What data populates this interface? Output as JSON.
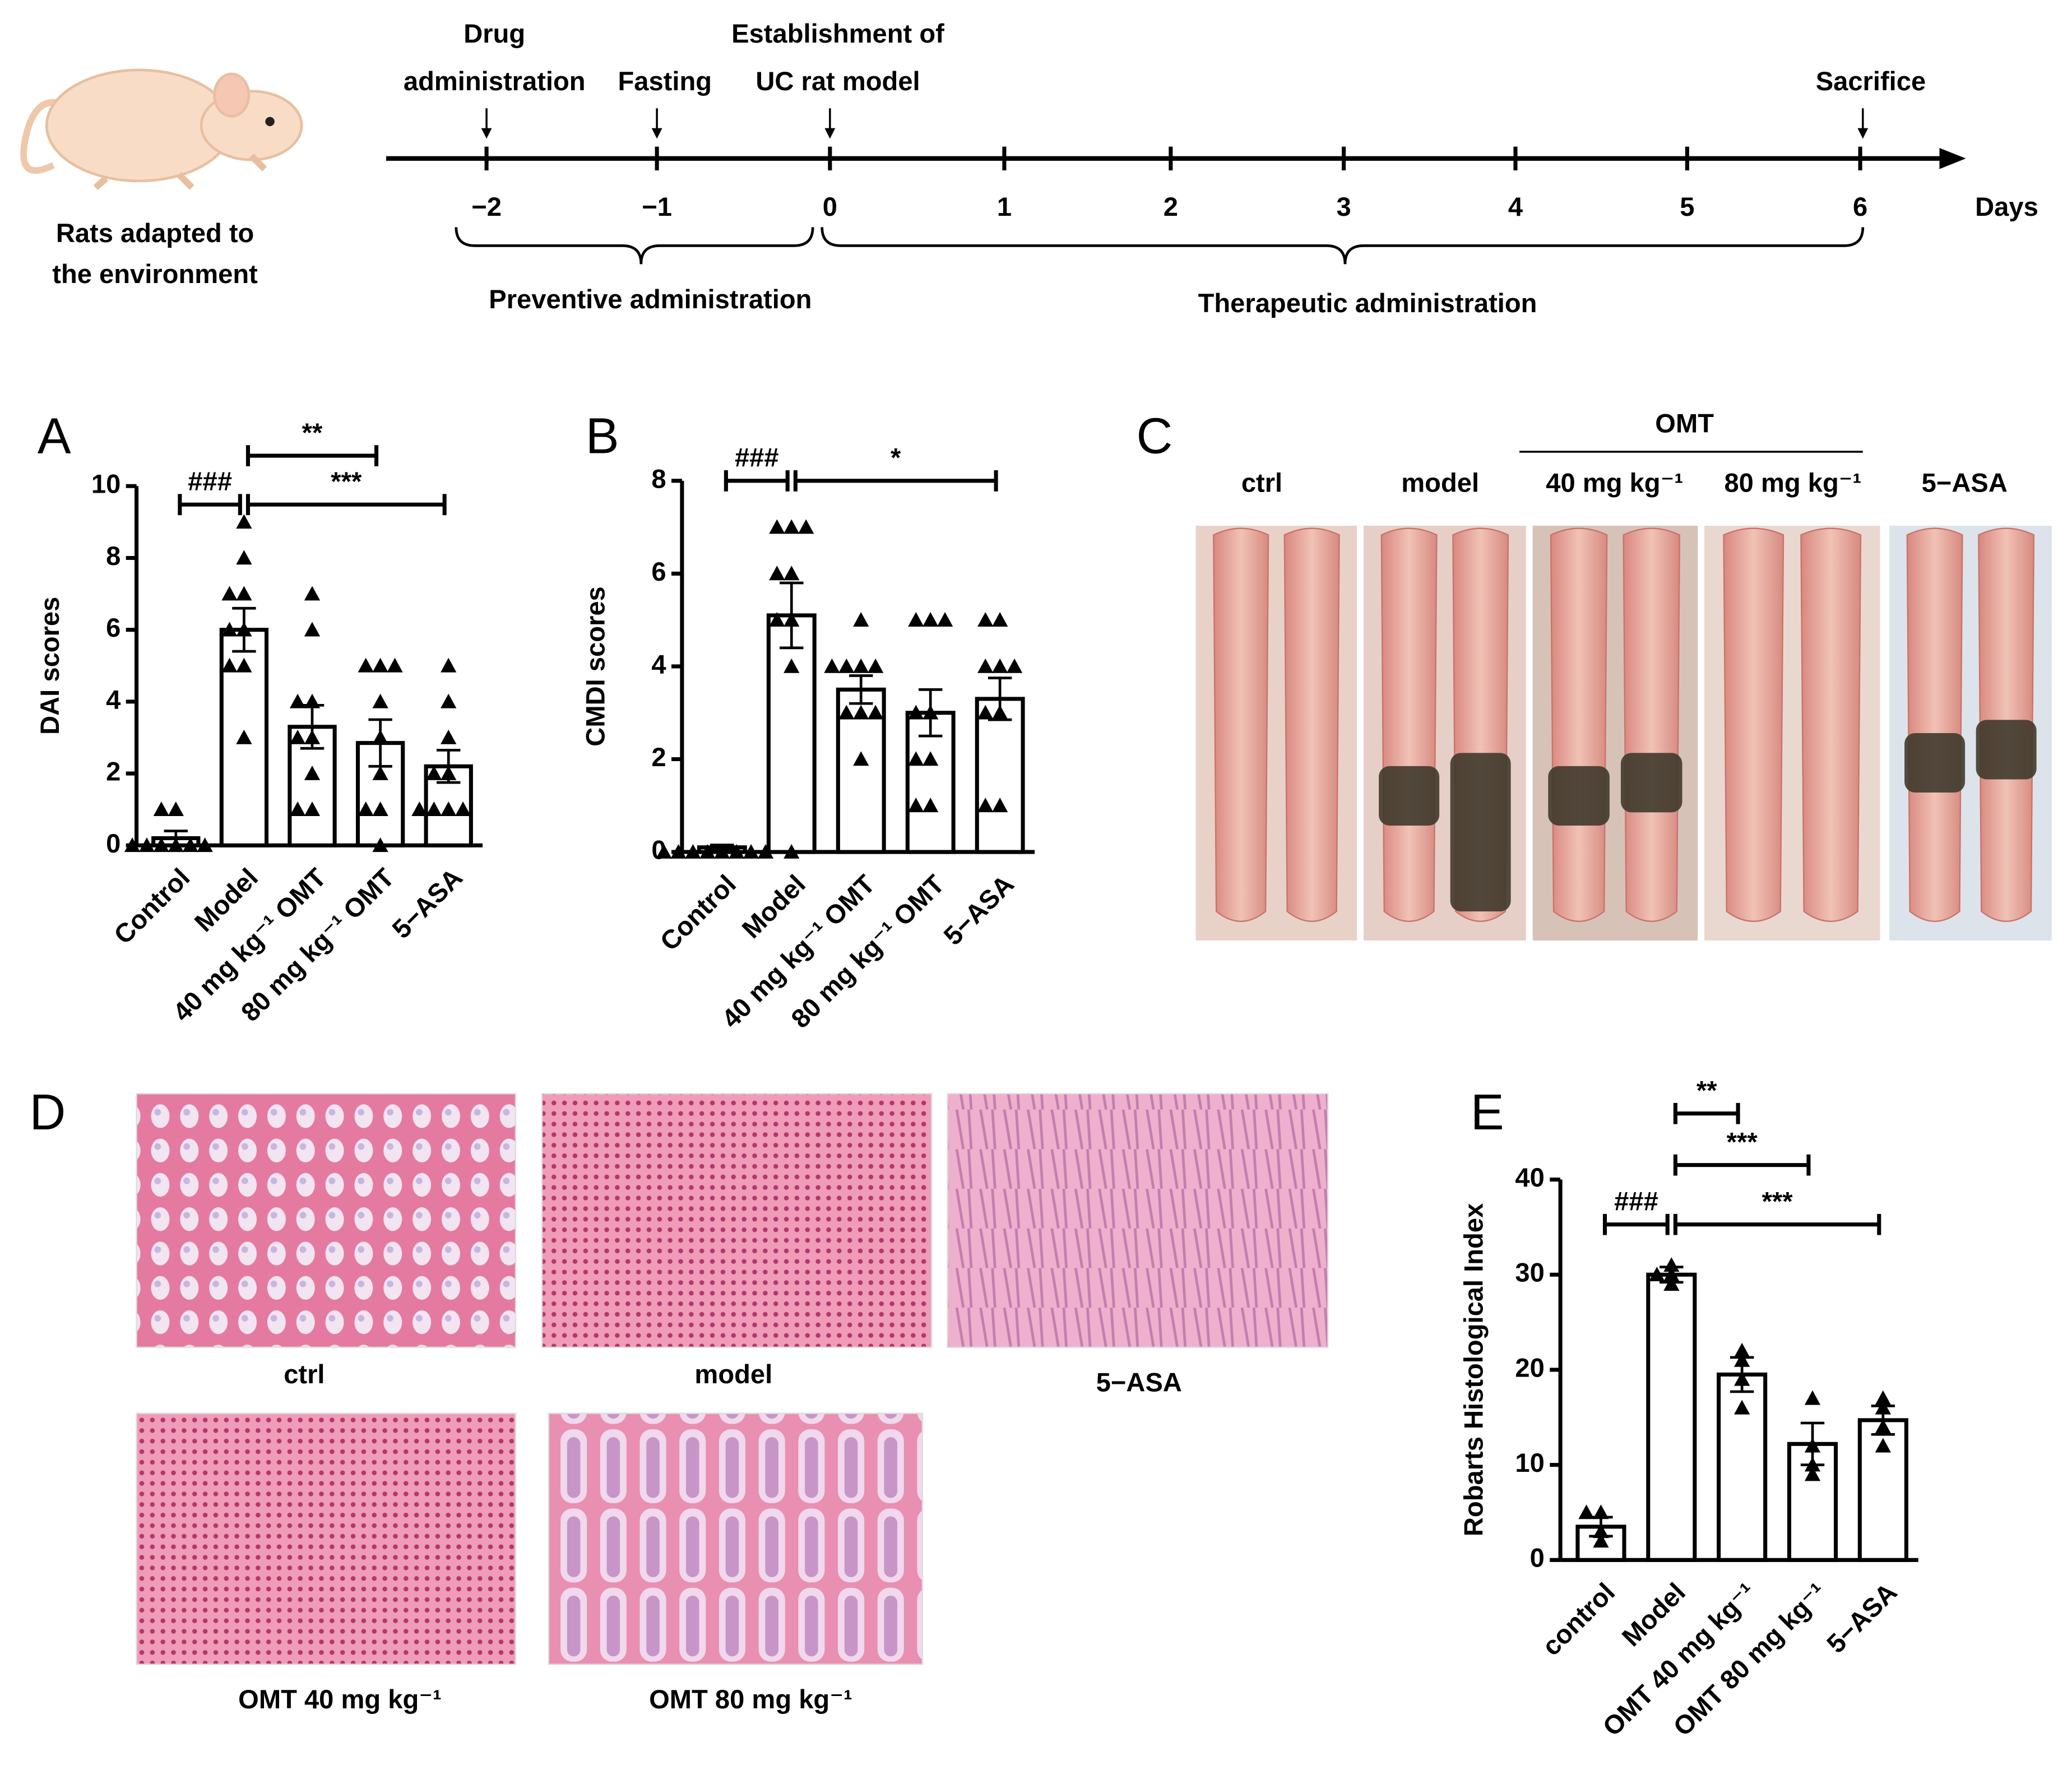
{
  "timeline": {
    "rat_caption": [
      "Rats adapted to",
      "the environment"
    ],
    "event_labels": [
      [
        "Drug",
        "administration"
      ],
      [
        "Fasting"
      ],
      [
        "Establishment of",
        "UC rat model"
      ],
      [
        "Sacrifice"
      ]
    ],
    "ticks": [
      "−2",
      "−1",
      "0",
      "1",
      "2",
      "3",
      "4",
      "5",
      "6"
    ],
    "unit": "Days",
    "phases": [
      "Preventive administration",
      "Therapeutic administration"
    ]
  },
  "panel_c": {
    "letter": "C",
    "group_label": "OMT",
    "labels": [
      "ctrl",
      "model",
      "40 mg kg⁻¹",
      "80 mg kg⁻¹",
      "5−ASA"
    ]
  },
  "panel_d": {
    "letter": "D",
    "labels": [
      "ctrl",
      "model",
      "5−ASA",
      "OMT 40 mg kg⁻¹",
      "OMT 80 mg kg⁻¹"
    ]
  },
  "chart_data": [
    {
      "type": "bar",
      "panel": "A",
      "y_label": "DAI scores",
      "categories": [
        "Control",
        "Model",
        "40 mg kg⁻¹ OMT",
        "80 mg kg⁻¹ OMT",
        "5−ASA"
      ],
      "values": [
        0.2,
        6.0,
        3.3,
        2.85,
        2.2
      ],
      "errors": [
        0.2,
        0.6,
        0.6,
        0.65,
        0.45
      ],
      "points": [
        [
          1,
          1,
          0,
          0,
          0,
          0,
          0,
          0
        ],
        [
          9,
          8,
          7,
          7,
          6,
          6,
          5,
          5,
          3
        ],
        [
          7,
          6,
          4,
          4,
          3,
          3,
          2,
          1,
          1
        ],
        [
          5,
          5,
          5,
          4,
          3,
          2,
          1,
          1,
          0
        ],
        [
          5,
          4,
          3,
          2,
          2,
          1,
          1,
          1,
          1
        ]
      ],
      "ylim": [
        0,
        10
      ],
      "yticks": [
        0,
        2,
        4,
        6,
        8,
        10
      ],
      "annotations": [
        "###",
        "**",
        "***"
      ],
      "color": "#ffffff",
      "edge_color": "#000000"
    },
    {
      "type": "bar",
      "panel": "B",
      "y_label": "CMDI scores",
      "categories": [
        "Control",
        "Model",
        "40 mg kg⁻¹ OMT",
        "80 mg kg⁻¹ OMT",
        "5−ASA"
      ],
      "values": [
        0.1,
        5.1,
        3.5,
        3.0,
        3.3
      ],
      "errors": [
        0.05,
        0.7,
        0.3,
        0.5,
        0.45
      ],
      "points": [
        [
          0,
          0,
          0,
          0,
          0,
          0,
          0,
          0
        ],
        [
          7,
          7,
          7,
          6,
          6,
          5,
          5,
          4,
          0
        ],
        [
          5,
          4,
          4,
          4,
          4,
          3,
          3,
          3,
          2
        ],
        [
          5,
          5,
          5,
          3,
          3,
          2,
          2,
          1,
          1
        ],
        [
          5,
          5,
          4,
          4,
          4,
          3,
          3,
          1,
          1
        ]
      ],
      "ylim": [
        0,
        8
      ],
      "yticks": [
        0,
        2,
        4,
        6,
        8
      ],
      "annotations": [
        "###",
        "*"
      ],
      "color": "#ffffff",
      "edge_color": "#000000"
    },
    {
      "type": "bar",
      "panel": "E",
      "y_label": "Robarts Histological Index",
      "categories": [
        "control",
        "Model",
        "OMT 40 mg kg⁻¹",
        "OMT 80 mg kg⁻¹",
        "5−ASA"
      ],
      "values": [
        3.5,
        30,
        19.5,
        12.2,
        14.7
      ],
      "errors": [
        1.0,
        0.8,
        1.8,
        2.2,
        1.5
      ],
      "points": [
        [
          5,
          5,
          3,
          2
        ],
        [
          31,
          30,
          30,
          29
        ],
        [
          22,
          21,
          19,
          16
        ],
        [
          17,
          12,
          10,
          9
        ],
        [
          17,
          16,
          14,
          12
        ]
      ],
      "ylim": [
        0,
        40
      ],
      "yticks": [
        0,
        10,
        20,
        30,
        40
      ],
      "annotations": [
        "###",
        "**",
        "***",
        "***"
      ],
      "color": "#ffffff",
      "edge_color": "#000000"
    }
  ]
}
